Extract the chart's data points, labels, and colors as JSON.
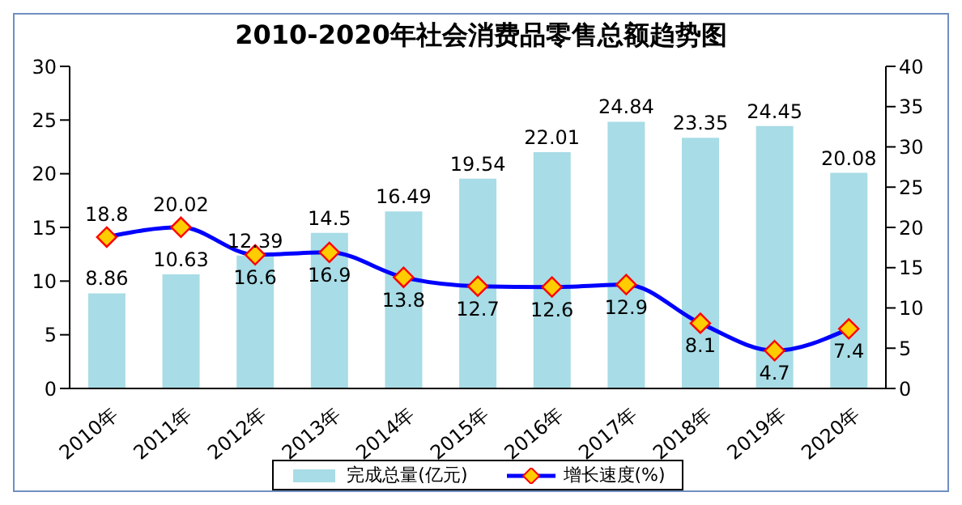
{
  "chart_data": {
    "type": "bar",
    "title": "2010-2020年社会消费品零售总额趋势图",
    "categories": [
      "2010年",
      "2011年",
      "2012年",
      "2013年",
      "2014年",
      "2015年",
      "2016年",
      "2017年",
      "2018年",
      "2019年",
      "2020年"
    ],
    "series": [
      {
        "name": "完成总量(亿元)",
        "color": "#a8dce6",
        "values": [
          8.86,
          10.63,
          12.39,
          14.5,
          16.49,
          19.54,
          22.01,
          24.84,
          23.35,
          24.45,
          20.08
        ]
      },
      {
        "name": "增长速度(%)",
        "type": "line",
        "axis": "y2",
        "color": "#0000ff",
        "marker": "diamond",
        "values": [
          18.8,
          20.02,
          16.6,
          16.9,
          13.8,
          12.7,
          12.6,
          12.9,
          8.1,
          4.7,
          7.4
        ]
      }
    ],
    "ylim": [
      0,
      30
    ],
    "yticks": [
      0,
      5,
      10,
      15,
      20,
      25,
      30
    ],
    "y2lim": [
      0,
      40
    ],
    "y2ticks": [
      0,
      5,
      10,
      15,
      20,
      25,
      30,
      35,
      40
    ],
    "data_labels": true,
    "legend": "bottom"
  }
}
